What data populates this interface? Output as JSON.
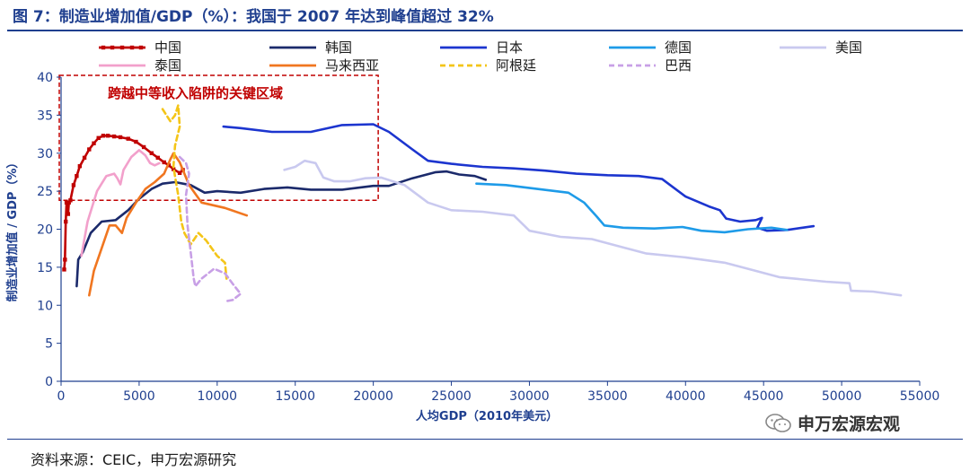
{
  "header": {
    "title": "图 7：制造业增加值/GDP（%）：我国于 2007 年达到峰值超过 32%"
  },
  "footer": {
    "source": "资料来源：CEIC，申万宏源研究"
  },
  "watermark": {
    "text": "申万宏源宏观"
  },
  "colors": {
    "title": "#1f3f8f",
    "axis": "#1f3f8f",
    "annotation": "#c00000"
  },
  "chart_data": {
    "type": "line",
    "xlabel": "人均GDP（2010年美元）",
    "ylabel": "制造业增加值 / GDP（%）",
    "xlim": [
      0,
      55000
    ],
    "ylim": [
      0,
      40
    ],
    "x_ticks": [
      0,
      5000,
      10000,
      15000,
      20000,
      25000,
      30000,
      35000,
      40000,
      45000,
      50000,
      55000
    ],
    "y_ticks": [
      0,
      5,
      10,
      15,
      20,
      25,
      30,
      35,
      40
    ],
    "grid": false,
    "legend": "top",
    "annotation": {
      "text": "跨越中等收入陷阱的关键区域",
      "x_range": [
        0,
        20200
      ],
      "y_range": [
        23.8,
        40
      ]
    },
    "series": [
      {
        "name": "中国",
        "color": "#c00000",
        "style": "solid-marker",
        "points": [
          [
            200,
            14.7
          ],
          [
            250,
            16
          ],
          [
            300,
            21
          ],
          [
            350,
            23.5
          ],
          [
            450,
            22
          ],
          [
            500,
            23.5
          ],
          [
            600,
            23.8
          ],
          [
            800,
            25.8
          ],
          [
            1000,
            27
          ],
          [
            1200,
            28.3
          ],
          [
            1500,
            29.4
          ],
          [
            1800,
            30.5
          ],
          [
            2100,
            31.3
          ],
          [
            2400,
            32
          ],
          [
            2700,
            32.3
          ],
          [
            3000,
            32.3
          ],
          [
            3400,
            32.2
          ],
          [
            3800,
            32.1
          ],
          [
            4300,
            31.9
          ],
          [
            4800,
            31.5
          ],
          [
            5300,
            30.8
          ],
          [
            5800,
            30
          ],
          [
            6200,
            29.4
          ],
          [
            6600,
            28.8
          ],
          [
            6900,
            28.4
          ],
          [
            7200,
            27.9
          ],
          [
            7600,
            27.4
          ],
          [
            7800,
            27.8
          ]
        ]
      },
      {
        "name": "韩国",
        "color": "#1b2a6b",
        "style": "solid",
        "points": [
          [
            1000,
            12.5
          ],
          [
            1100,
            16
          ],
          [
            1400,
            17
          ],
          [
            1900,
            19.5
          ],
          [
            2600,
            21
          ],
          [
            3500,
            21.2
          ],
          [
            4300,
            22.5
          ],
          [
            5000,
            24
          ],
          [
            5800,
            25.3
          ],
          [
            6500,
            26
          ],
          [
            7300,
            26.2
          ],
          [
            8300,
            25.8
          ],
          [
            9200,
            24.8
          ],
          [
            10000,
            25
          ],
          [
            11500,
            24.8
          ],
          [
            13000,
            25.3
          ],
          [
            14500,
            25.5
          ],
          [
            16000,
            25.2
          ],
          [
            18000,
            25.2
          ],
          [
            20000,
            25.7
          ],
          [
            21000,
            25.7
          ],
          [
            22500,
            26.7
          ],
          [
            24000,
            27.5
          ],
          [
            24700,
            27.6
          ],
          [
            25500,
            27.2
          ],
          [
            26500,
            27
          ],
          [
            27200,
            26.5
          ]
        ]
      },
      {
        "name": "日本",
        "color": "#1c35cf",
        "style": "solid",
        "points": [
          [
            10400,
            33.5
          ],
          [
            11500,
            33.3
          ],
          [
            13500,
            32.8
          ],
          [
            16000,
            32.8
          ],
          [
            18000,
            33.7
          ],
          [
            20000,
            33.8
          ],
          [
            21000,
            32.8
          ],
          [
            22500,
            30.5
          ],
          [
            23500,
            29
          ],
          [
            25000,
            28.6
          ],
          [
            27000,
            28.2
          ],
          [
            29000,
            28
          ],
          [
            31000,
            27.7
          ],
          [
            33000,
            27.3
          ],
          [
            35000,
            27.1
          ],
          [
            37000,
            27
          ],
          [
            38500,
            26.6
          ],
          [
            40000,
            24.3
          ],
          [
            41500,
            23
          ],
          [
            42200,
            22.5
          ],
          [
            42600,
            21.4
          ],
          [
            43500,
            21
          ],
          [
            44500,
            21.2
          ],
          [
            44900,
            21.5
          ],
          [
            44600,
            20.2
          ],
          [
            45200,
            19.8
          ],
          [
            46500,
            19.9
          ],
          [
            47500,
            20.2
          ],
          [
            48200,
            20.4
          ]
        ]
      },
      {
        "name": "德国",
        "color": "#1e9be8",
        "style": "solid",
        "points": [
          [
            26600,
            26
          ],
          [
            28500,
            25.8
          ],
          [
            30500,
            25.3
          ],
          [
            32500,
            24.8
          ],
          [
            33500,
            23.5
          ],
          [
            34300,
            21.7
          ],
          [
            34800,
            20.5
          ],
          [
            36000,
            20.2
          ],
          [
            38000,
            20.1
          ],
          [
            39800,
            20.3
          ],
          [
            40300,
            20.1
          ],
          [
            41000,
            19.8
          ],
          [
            42500,
            19.6
          ],
          [
            44000,
            20
          ],
          [
            45500,
            20.2
          ],
          [
            46500,
            19.9
          ]
        ]
      },
      {
        "name": "美国",
        "color": "#c9c9ef",
        "style": "solid",
        "points": [
          [
            14300,
            27.8
          ],
          [
            15000,
            28.2
          ],
          [
            15600,
            29
          ],
          [
            16300,
            28.7
          ],
          [
            16800,
            26.8
          ],
          [
            17500,
            26.3
          ],
          [
            18500,
            26.3
          ],
          [
            19500,
            26.7
          ],
          [
            20500,
            26.8
          ],
          [
            22000,
            25.8
          ],
          [
            23500,
            23.5
          ],
          [
            25000,
            22.5
          ],
          [
            27000,
            22.3
          ],
          [
            29000,
            21.8
          ],
          [
            30000,
            19.8
          ],
          [
            32000,
            19
          ],
          [
            34000,
            18.7
          ],
          [
            36000,
            17.6
          ],
          [
            37500,
            16.8
          ],
          [
            40000,
            16.3
          ],
          [
            42500,
            15.6
          ],
          [
            44000,
            14.8
          ],
          [
            46000,
            13.7
          ],
          [
            49000,
            13.1
          ],
          [
            50500,
            12.9
          ],
          [
            50600,
            11.9
          ],
          [
            52000,
            11.8
          ],
          [
            53800,
            11.3
          ]
        ]
      },
      {
        "name": "泰国",
        "color": "#f2a0cb",
        "style": "solid",
        "points": [
          [
            1300,
            16.5
          ],
          [
            1700,
            21
          ],
          [
            2300,
            25
          ],
          [
            2900,
            27
          ],
          [
            3400,
            27.3
          ],
          [
            3600,
            26.7
          ],
          [
            3800,
            25.9
          ],
          [
            4000,
            27.8
          ],
          [
            4500,
            29.5
          ],
          [
            5000,
            30.4
          ],
          [
            5400,
            29.7
          ],
          [
            5700,
            28.7
          ],
          [
            6000,
            28.4
          ],
          [
            6300,
            28.7
          ]
        ]
      },
      {
        "name": "马来西亚",
        "color": "#f07620",
        "style": "solid",
        "points": [
          [
            1800,
            11.3
          ],
          [
            2100,
            14.5
          ],
          [
            2600,
            17.5
          ],
          [
            3100,
            20.5
          ],
          [
            3500,
            20.5
          ],
          [
            3900,
            19.5
          ],
          [
            4200,
            21.5
          ],
          [
            4800,
            23.5
          ],
          [
            5400,
            25.3
          ],
          [
            6000,
            26.2
          ],
          [
            6600,
            27.3
          ],
          [
            7000,
            29.2
          ],
          [
            7200,
            30
          ],
          [
            7600,
            28.8
          ],
          [
            8200,
            25.8
          ],
          [
            9000,
            23.5
          ],
          [
            10500,
            22.8
          ],
          [
            11900,
            21.8
          ]
        ]
      },
      {
        "name": "阿根廷",
        "color": "#f4c518",
        "style": "dashed",
        "points": [
          [
            6500,
            35.8
          ],
          [
            7000,
            34.2
          ],
          [
            7300,
            35
          ],
          [
            7500,
            36.3
          ],
          [
            7600,
            33.5
          ],
          [
            7300,
            31
          ],
          [
            7200,
            28.2
          ],
          [
            7500,
            24.5
          ],
          [
            7700,
            21
          ],
          [
            7900,
            19.5
          ],
          [
            8300,
            18
          ],
          [
            8800,
            19.5
          ],
          [
            9300,
            18.5
          ],
          [
            10000,
            16.5
          ],
          [
            10500,
            15.6
          ],
          [
            10600,
            13.5
          ]
        ]
      },
      {
        "name": "巴西",
        "color": "#c8a0e6",
        "style": "dashed",
        "points": [
          [
            7600,
            29.5
          ],
          [
            8000,
            28.7
          ],
          [
            8200,
            27.3
          ],
          [
            8000,
            24.5
          ],
          [
            8100,
            20.5
          ],
          [
            8300,
            17
          ],
          [
            8500,
            13.5
          ],
          [
            8600,
            12.5
          ],
          [
            9000,
            13.5
          ],
          [
            9800,
            14.8
          ],
          [
            10500,
            14.2
          ],
          [
            11000,
            12.8
          ],
          [
            11500,
            11.5
          ],
          [
            11000,
            10.7
          ],
          [
            10500,
            10.5
          ]
        ]
      }
    ]
  }
}
